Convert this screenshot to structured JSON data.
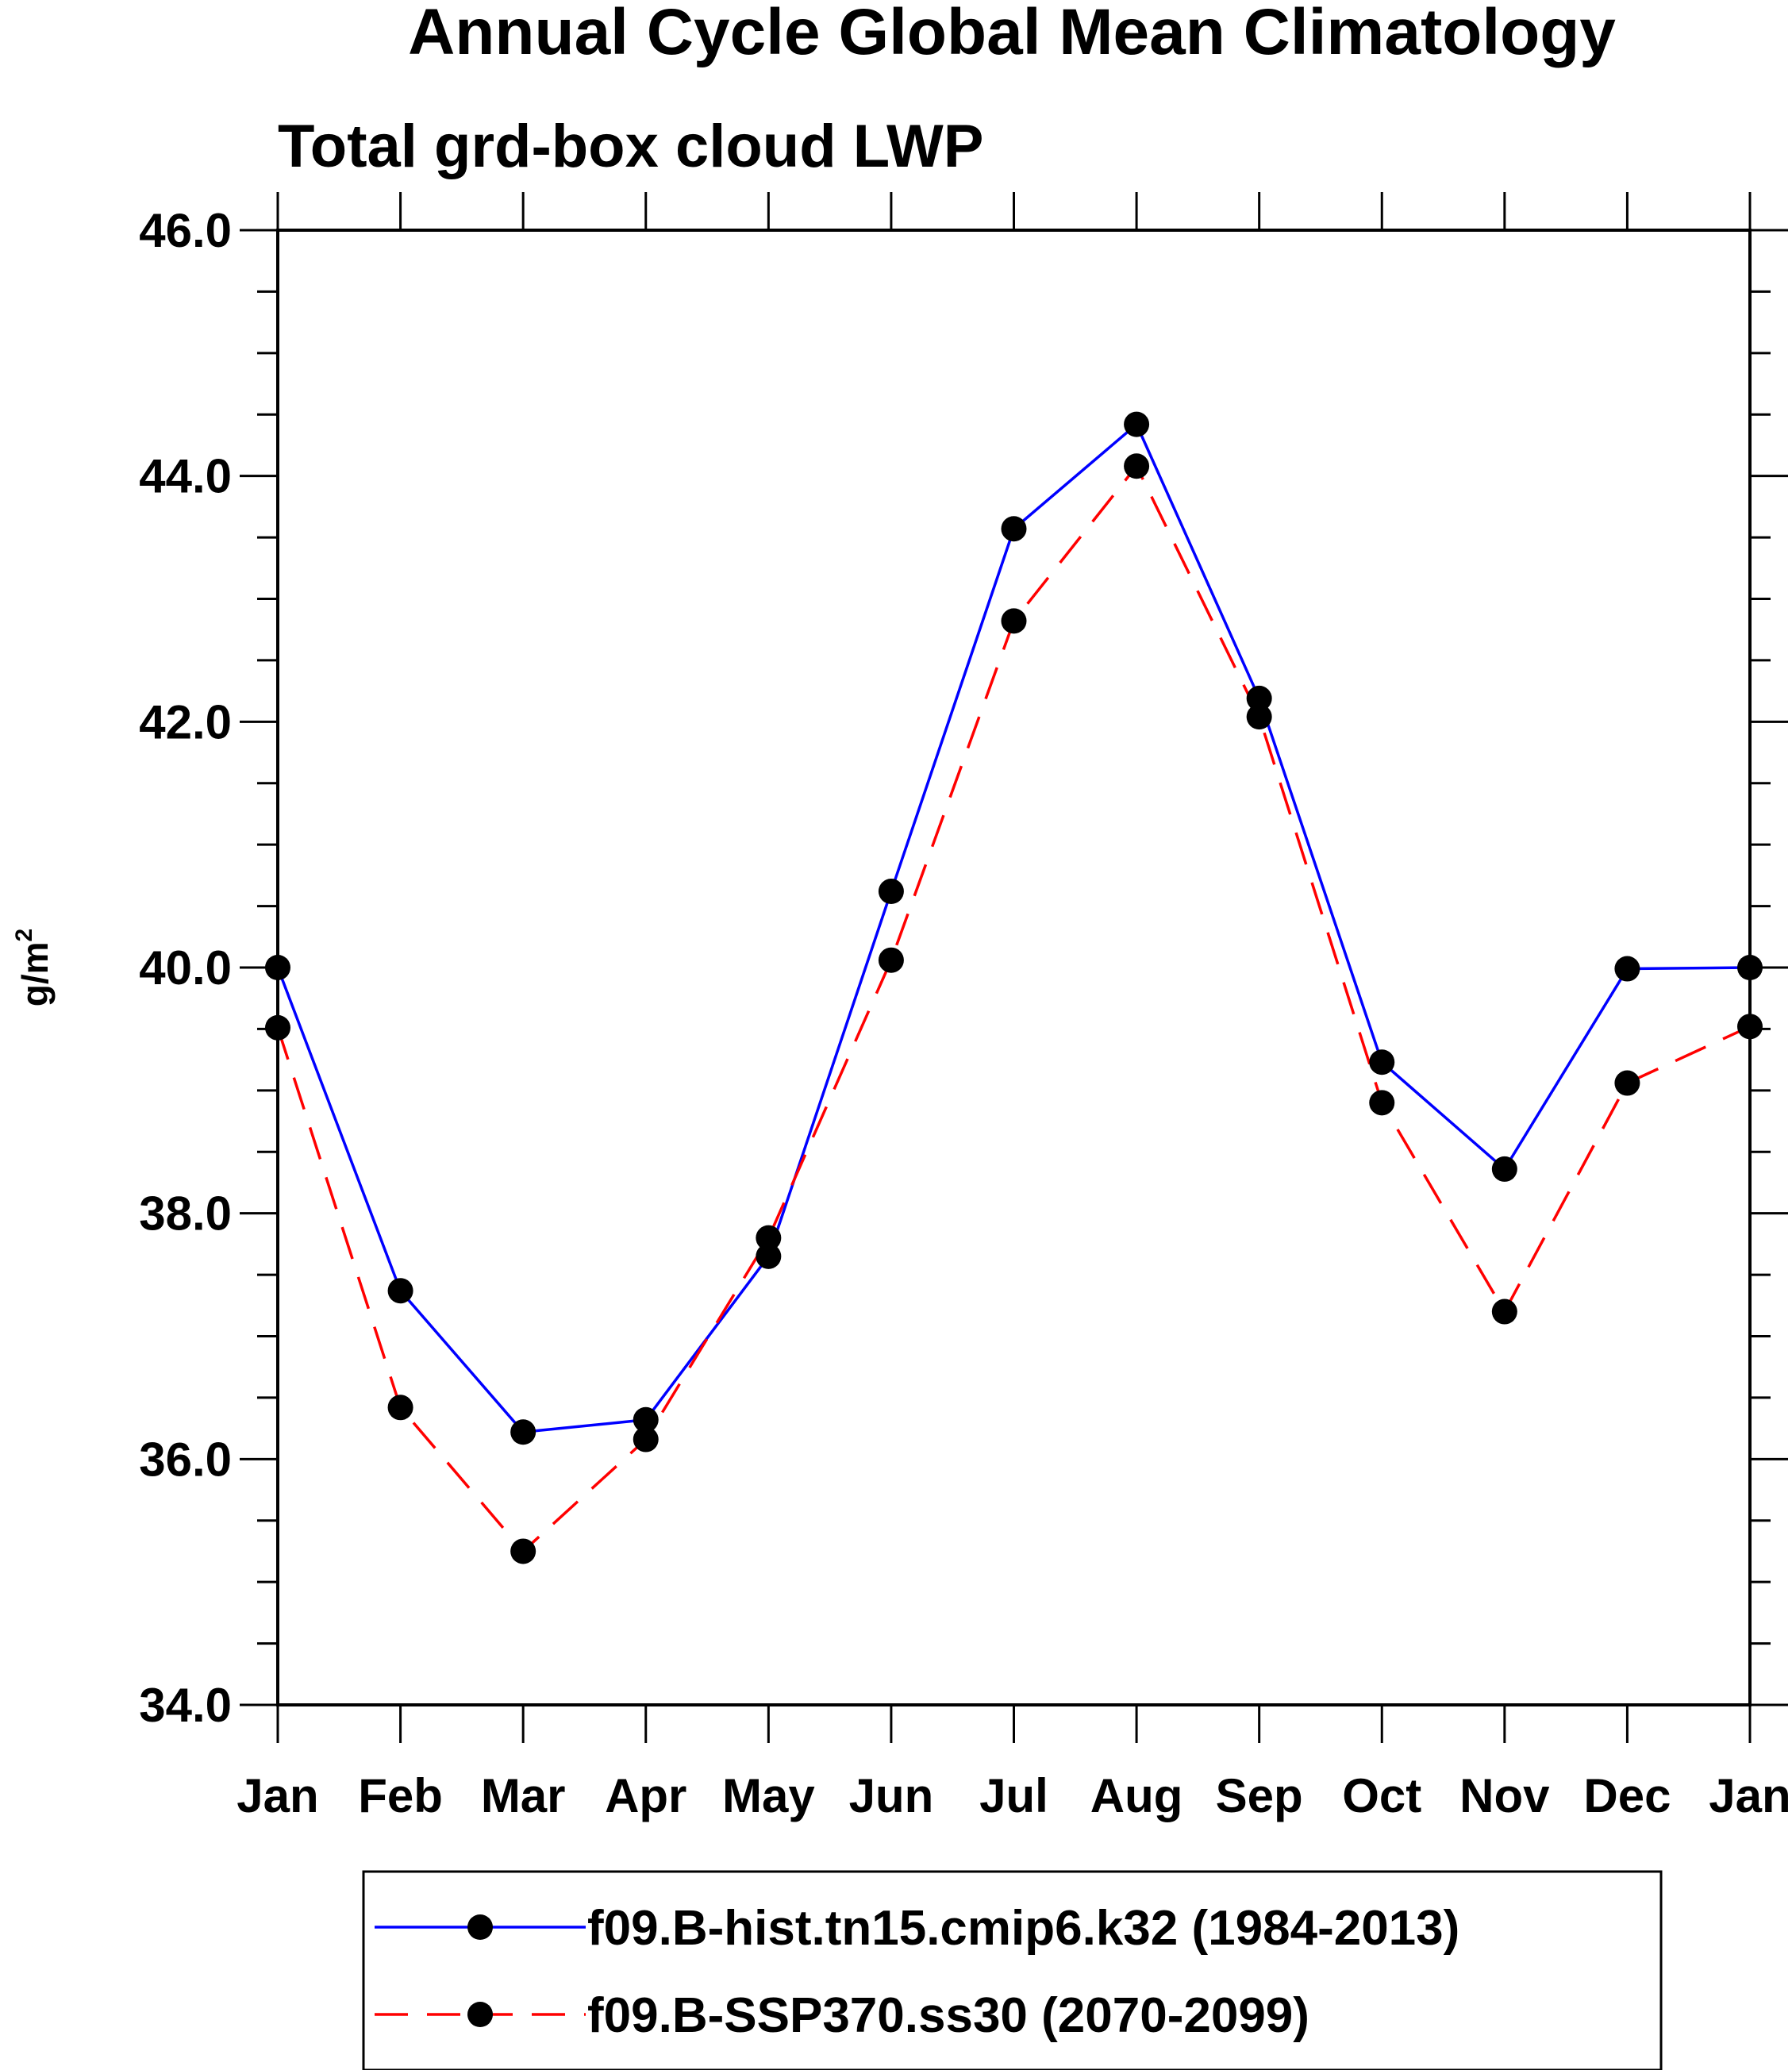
{
  "chart_data": {
    "type": "line",
    "title": "Annual Cycle Global Mean Climatology",
    "subtitle": "Total grd-box cloud LWP",
    "ylabel": "g/m",
    "ylabel_superscript": "2",
    "xlabel": "",
    "ylim": [
      34.0,
      46.0
    ],
    "y_ticks": [
      "46.0",
      "44.0",
      "42.0",
      "40.0",
      "38.0",
      "36.0",
      "34.0"
    ],
    "categories": [
      "Jan",
      "Feb",
      "Mar",
      "Apr",
      "May",
      "Jun",
      "Jul",
      "Aug",
      "Sep",
      "Oct",
      "Nov",
      "Dec",
      "Jan"
    ],
    "grid": false,
    "legend_position": "bottom",
    "series": [
      {
        "name": "f09.B-hist.tn15.cmip6.k32 (1984-2013)",
        "color": "#0000ff",
        "line_style": "solid",
        "marker": "filled-circle",
        "values": [
          40.0,
          37.37,
          36.22,
          36.32,
          37.65,
          40.62,
          43.57,
          44.42,
          42.19,
          39.23,
          38.36,
          39.99,
          40.0
        ]
      },
      {
        "name": "f09.B-SSP370.ss30 (2070-2099)",
        "color": "#ff0000",
        "line_style": "dashed",
        "marker": "filled-circle",
        "values": [
          39.51,
          36.42,
          35.25,
          36.16,
          37.8,
          40.06,
          42.82,
          44.08,
          42.04,
          38.9,
          37.2,
          39.06,
          39.52
        ]
      }
    ]
  }
}
